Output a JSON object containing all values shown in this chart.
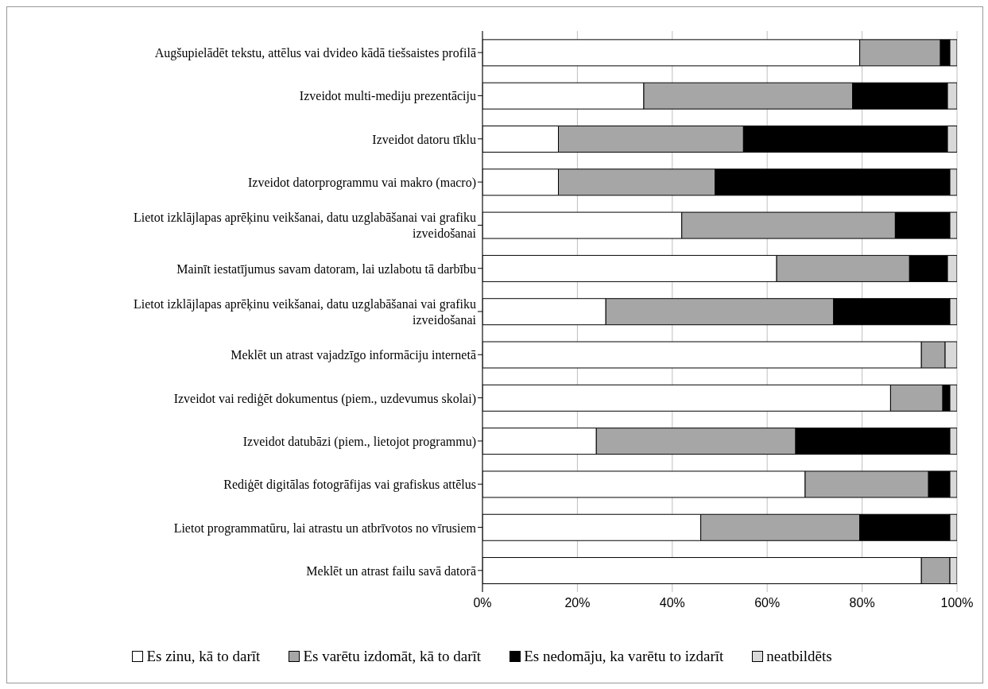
{
  "chart_data": {
    "type": "bar",
    "orientation": "horizontal",
    "stacked": true,
    "categories": [
      "Augšupielādēt tekstu, attēlus vai dvideo kādā tiešsaistes profilā",
      "Izveidot multi-mediju prezentāciju",
      "Izveidot datoru tīklu",
      "Izveidot datorprogrammu vai makro (macro)",
      "Lietot izklājlapas aprēķinu veikšanai, datu uzglabāšanai vai grafiku izveidošanai",
      "Mainīt iestatījumus savam datoram, lai uzlabotu tā darbību",
      "Lietot izklājlapas aprēķinu veikšanai, datu uzglabāšanai vai grafiku izveidošanai",
      "Meklēt un atrast vajadzīgo informāciju internetā",
      "Izveidot vai rediģēt dokumentus (piem., uzdevumus skolai)",
      "Izveidot datubāzi (piem., lietojot programmu)",
      "Rediģēt digitālas fotogrāfijas vai grafiskus attēlus",
      "Lietot programmatūru, lai atrastu un atbrīvotos no vīrusiem",
      "Meklēt un atrast failu savā datorā"
    ],
    "series": [
      {
        "name": "Es zinu, kā to darīt",
        "color": "#ffffff",
        "values": [
          79.5,
          34,
          16,
          16,
          42,
          62,
          26,
          92.5,
          86,
          24,
          68,
          46,
          92.5
        ]
      },
      {
        "name": "Es varētu izdomāt, kā to darīt",
        "color": "#a6a6a6",
        "values": [
          17,
          44,
          39,
          33,
          45,
          28,
          48,
          5,
          11,
          42,
          26,
          33.5,
          6
        ]
      },
      {
        "name": "Es nedomāju, ka varētu to izdarīt",
        "color": "#000000",
        "values": [
          2,
          20,
          43,
          49.5,
          11.5,
          8,
          24.5,
          0,
          1.5,
          32.5,
          4.5,
          19,
          0
        ]
      },
      {
        "name": "neatbildēts",
        "color": "#d9d9d9",
        "values": [
          1.5,
          2,
          2,
          1.5,
          1.5,
          2,
          1.5,
          2.5,
          1.5,
          1.5,
          1.5,
          1.5,
          1.5
        ]
      }
    ],
    "xlim": [
      0,
      100
    ],
    "xticks": [
      {
        "value": 0,
        "label": "0%"
      },
      {
        "value": 20,
        "label": "20%"
      },
      {
        "value": 40,
        "label": "40%"
      },
      {
        "value": 60,
        "label": "60%"
      },
      {
        "value": 80,
        "label": "80%"
      },
      {
        "value": 100,
        "label": "100%"
      }
    ],
    "grid": "x",
    "legend": "bottom"
  }
}
